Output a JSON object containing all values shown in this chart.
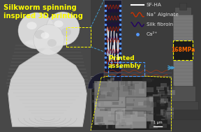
{
  "bg_color": "#5a5a5a",
  "title_text": "Silkworm spinning\ninspired 3D printing",
  "title_color": "#ffff00",
  "title_fontsize": 7.2,
  "printed_assembly_text": "Printed\nassembly",
  "printed_assembly_color": "#ffff00",
  "printed_assembly_fontsize": 6.5,
  "mpa_text": "168MPa",
  "mpa_color": "#ff6600",
  "mpa_fontsize": 5.5,
  "legend_items": [
    {
      "label": "SF-HA",
      "color": "#ffffff",
      "style": "line"
    },
    {
      "label": "Na⁺ Alginate",
      "color": "#cc3300",
      "style": "wave"
    },
    {
      "label": "Silk fibroin",
      "color": "#220066",
      "style": "wave"
    },
    {
      "label": "Ca²⁺",
      "color": "#5599ff",
      "style": "dot"
    }
  ],
  "legend_fontsize": 5.2,
  "arrow_color": "#4499cc",
  "dashed_box_color": "#ffff00",
  "scale_bar_text": "1 μm",
  "scale_bar_color": "#ffffff",
  "vase_color": "#d8d8d8",
  "vase_shadow": "#aaaaaa",
  "sphere_color": "#e2e2e2",
  "nozzle_bg": "#1c1c2e",
  "nozzle_edge": "#4466aa",
  "dot_color": "#5599ff",
  "center_panel_color": "#3c3c3c",
  "sem_bg": "#444444",
  "device_color": "#888888",
  "device_dark": "#444444"
}
